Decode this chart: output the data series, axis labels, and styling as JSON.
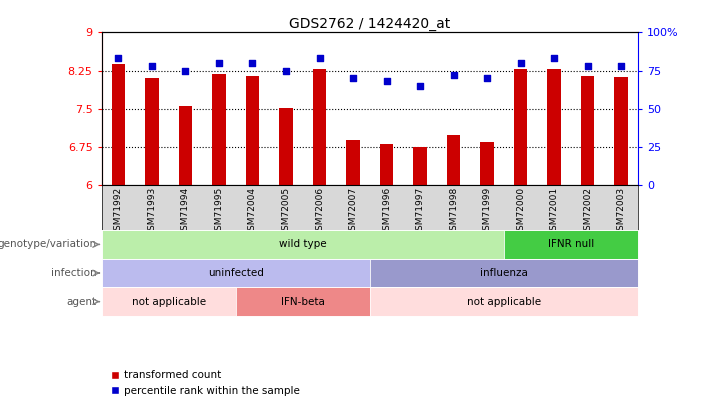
{
  "title": "GDS2762 / 1424420_at",
  "samples": [
    "GSM71992",
    "GSM71993",
    "GSM71994",
    "GSM71995",
    "GSM72004",
    "GSM72005",
    "GSM72006",
    "GSM72007",
    "GSM71996",
    "GSM71997",
    "GSM71998",
    "GSM71999",
    "GSM72000",
    "GSM72001",
    "GSM72002",
    "GSM72003"
  ],
  "bar_values": [
    8.38,
    8.1,
    7.55,
    8.18,
    8.15,
    7.52,
    8.28,
    6.88,
    6.8,
    6.75,
    6.98,
    6.85,
    8.28,
    8.28,
    8.15,
    8.12
  ],
  "scatter_values": [
    83,
    78,
    75,
    80,
    80,
    75,
    83,
    70,
    68,
    65,
    72,
    70,
    80,
    83,
    78,
    78
  ],
  "ylim": [
    6.0,
    9.0
  ],
  "yticks": [
    6.0,
    6.75,
    7.5,
    8.25,
    9.0
  ],
  "ytick_labels": [
    "6",
    "6.75",
    "7.5",
    "8.25",
    "9"
  ],
  "y2ticks": [
    0,
    25,
    50,
    75,
    100
  ],
  "y2tick_labels": [
    "0",
    "25",
    "50",
    "75",
    "100%"
  ],
  "hlines": [
    8.25,
    7.5,
    6.75
  ],
  "bar_color": "#cc0000",
  "scatter_color": "#0000cc",
  "bg_color": "#ffffff",
  "genotype_labels": [
    {
      "text": "wild type",
      "start": 0,
      "end": 11,
      "color": "#bbeeaa"
    },
    {
      "text": "IFNR null",
      "start": 12,
      "end": 15,
      "color": "#44cc44"
    }
  ],
  "infection_labels": [
    {
      "text": "uninfected",
      "start": 0,
      "end": 7,
      "color": "#bbbbee"
    },
    {
      "text": "influenza",
      "start": 8,
      "end": 15,
      "color": "#9999cc"
    }
  ],
  "agent_labels": [
    {
      "text": "not applicable",
      "start": 0,
      "end": 3,
      "color": "#ffdddd"
    },
    {
      "text": "IFN-beta",
      "start": 4,
      "end": 7,
      "color": "#ee8888"
    },
    {
      "text": "not applicable",
      "start": 8,
      "end": 15,
      "color": "#ffdddd"
    }
  ],
  "row_labels": [
    "genotype/variation",
    "infection",
    "agent"
  ],
  "legend_items": [
    "transformed count",
    "percentile rank within the sample"
  ],
  "label_color": "#555555",
  "bar_width": 0.4
}
